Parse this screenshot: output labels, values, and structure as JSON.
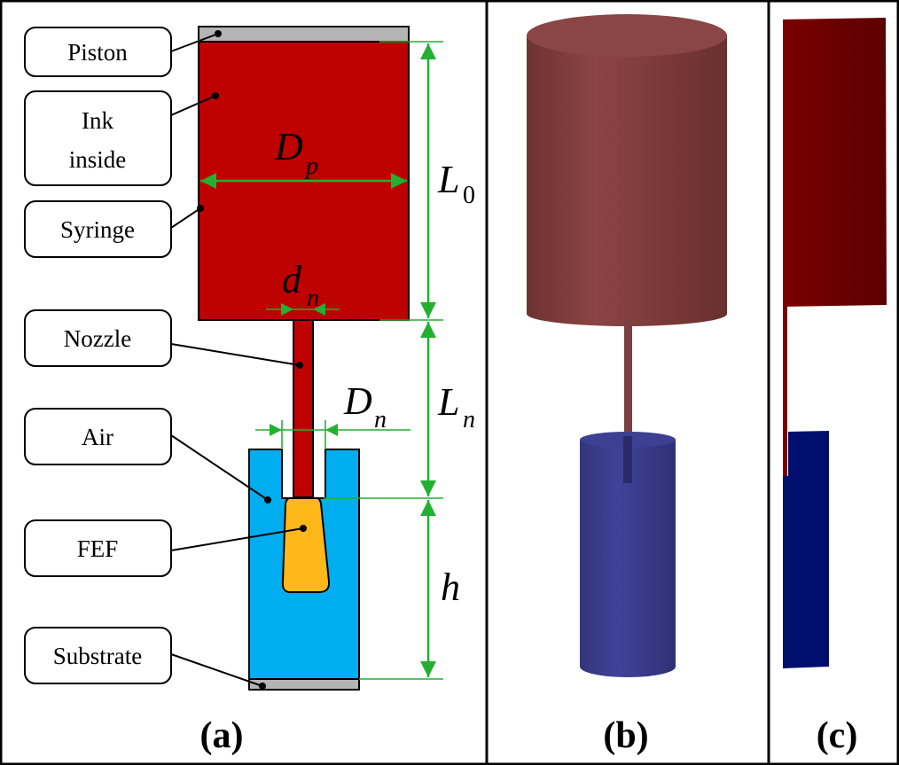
{
  "labels": {
    "piston": "Piston",
    "ink_line1": "Ink",
    "ink_line2": "inside",
    "syringe": "Syringe",
    "nozzle": "Nozzle",
    "air": "Air",
    "fef": "FEF",
    "substrate": "Substrate"
  },
  "symbols": {
    "Dp": {
      "main": "D",
      "sub": "p"
    },
    "dn": {
      "main": "d",
      "sub": "n"
    },
    "Dn": {
      "main": "D",
      "sub": "n"
    },
    "L0": {
      "main": "L",
      "sub": "0"
    },
    "Ln": {
      "main": "L",
      "sub": "n"
    },
    "h": {
      "main": "h"
    }
  },
  "captions": {
    "a": "(a)",
    "b": "(b)",
    "c": "(c)"
  },
  "colors": {
    "ink_red": "#bf0000",
    "piston_gray": "#b4b4b4",
    "air_blue": "#00aeef",
    "fef_orange": "#ffb81a",
    "dimension_green": "#22b030",
    "render_syringe": "#7d3a3a",
    "render_domain": "#3a3e8e",
    "section_syringe": "#660000",
    "section_domain": "#000f6e"
  }
}
